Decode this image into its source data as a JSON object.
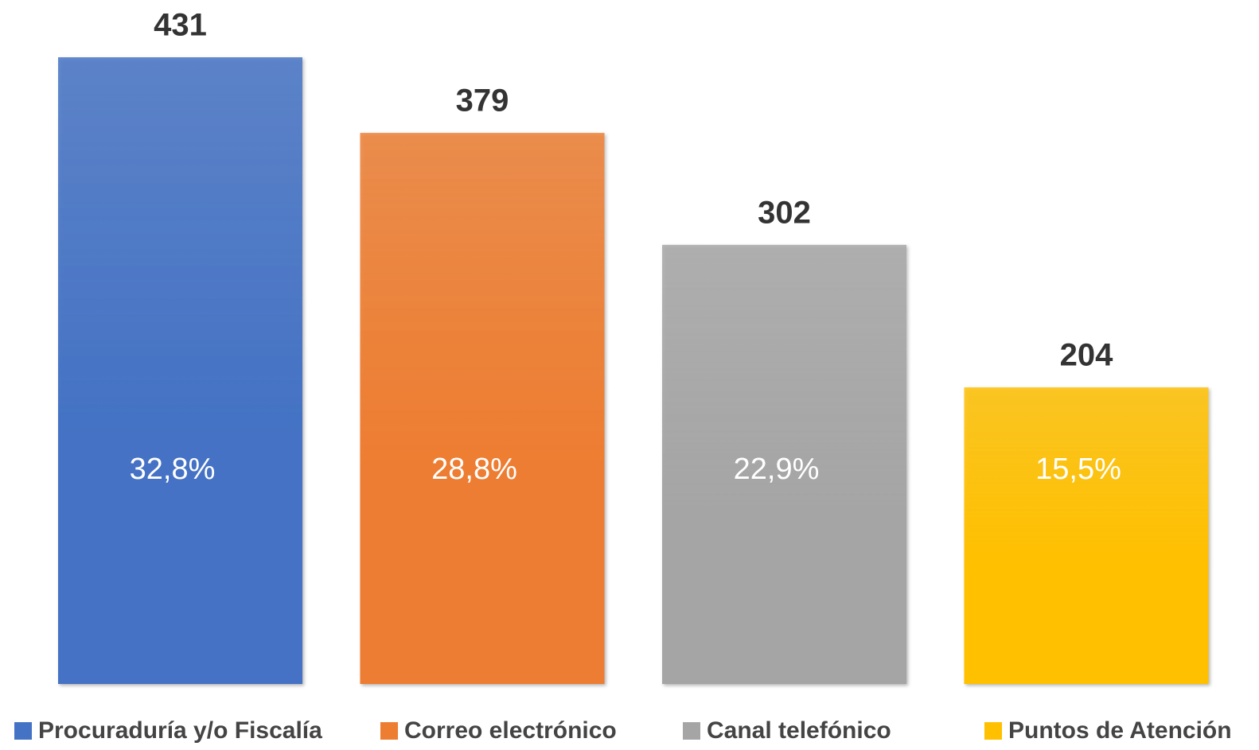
{
  "chart_data": {
    "type": "bar",
    "series": [
      {
        "name": "Procuraduría y/o Fiscalía",
        "color": "#4472c4",
        "values": [
          431
        ],
        "percent_labels": [
          "32,8%"
        ]
      },
      {
        "name": "Correo electrónico",
        "color": "#ed7d31",
        "values": [
          379
        ],
        "percent_labels": [
          "28,8%"
        ]
      },
      {
        "name": "Canal telefónico",
        "color": "#a5a5a5",
        "values": [
          302
        ],
        "percent_labels": [
          "22,9%"
        ]
      },
      {
        "name": "Puntos de Atención",
        "color": "#ffc000",
        "values": [
          204
        ],
        "percent_labels": [
          "15,5%"
        ]
      }
    ],
    "legend": "bottom"
  }
}
